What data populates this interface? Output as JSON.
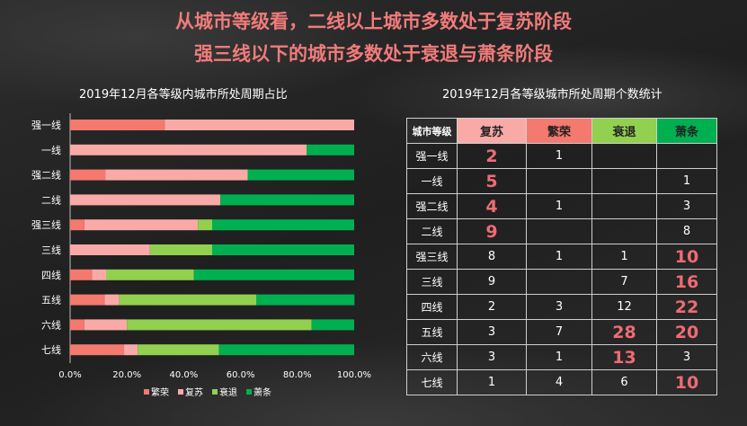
{
  "title": {
    "line1": "从城市等级看，二线以上城市多数处于复苏阶段",
    "line2": "强三线以下的城市多数处于衰退与萧条阶段"
  },
  "colors": {
    "繁荣": "#f4796e",
    "复苏": "#f9aaa6",
    "衰退": "#92d050",
    "萧条": "#00b050",
    "highlight": "#ee6b73",
    "title": "#f07b7b"
  },
  "chart_data": {
    "type": "bar",
    "orientation": "horizontal-stacked-100",
    "title": "2019年12月各等级内城市所处周期占比",
    "categories": [
      "强一线",
      "一线",
      "强二线",
      "二线",
      "强三线",
      "三线",
      "四线",
      "五线",
      "六线",
      "七线"
    ],
    "series": [
      {
        "name": "繁荣",
        "values": [
          33.3,
          0,
          12.5,
          0,
          5.0,
          0,
          7.7,
          12.1,
          5.0,
          19.0
        ]
      },
      {
        "name": "复苏",
        "values": [
          66.7,
          83.3,
          50.0,
          52.9,
          40.0,
          28.1,
          5.1,
          5.2,
          15.0,
          4.8
        ]
      },
      {
        "name": "衰退",
        "values": [
          0,
          0,
          0,
          0,
          5.0,
          21.9,
          30.8,
          48.3,
          65.0,
          28.6
        ]
      },
      {
        "name": "萧条",
        "values": [
          0,
          16.7,
          37.5,
          47.1,
          50.0,
          50.0,
          56.4,
          34.5,
          15.0,
          47.6
        ]
      }
    ],
    "xlim": [
      0,
      100
    ],
    "xticks": [
      "0.0%",
      "20.0%",
      "40.0%",
      "60.0%",
      "80.0%",
      "100.0%"
    ],
    "legend": "bottom"
  },
  "table": {
    "title": "2019年12月各等级城市所处周期个数统计",
    "headers": [
      "城市等级",
      "复苏",
      "繁荣",
      "衰退",
      "萧条"
    ],
    "rows": [
      {
        "c": [
          "强一线",
          "2",
          "1",
          "",
          ""
        ],
        "hl": [
          1
        ]
      },
      {
        "c": [
          "一线",
          "5",
          "",
          "",
          "1"
        ],
        "hl": [
          1
        ]
      },
      {
        "c": [
          "强二线",
          "4",
          "1",
          "",
          "3"
        ],
        "hl": [
          1
        ]
      },
      {
        "c": [
          "二线",
          "9",
          "",
          "",
          "8"
        ],
        "hl": [
          1
        ]
      },
      {
        "c": [
          "强三线",
          "8",
          "1",
          "1",
          "10"
        ],
        "hl": [
          4
        ]
      },
      {
        "c": [
          "三线",
          "9",
          "",
          "7",
          "16"
        ],
        "hl": [
          4
        ]
      },
      {
        "c": [
          "四线",
          "2",
          "3",
          "12",
          "22"
        ],
        "hl": [
          4
        ]
      },
      {
        "c": [
          "五线",
          "3",
          "7",
          "28",
          "20"
        ],
        "hl": [
          3,
          4
        ]
      },
      {
        "c": [
          "六线",
          "3",
          "1",
          "13",
          "3"
        ],
        "hl": [
          3
        ]
      },
      {
        "c": [
          "七线",
          "1",
          "4",
          "6",
          "10"
        ],
        "hl": [
          4
        ]
      }
    ]
  }
}
